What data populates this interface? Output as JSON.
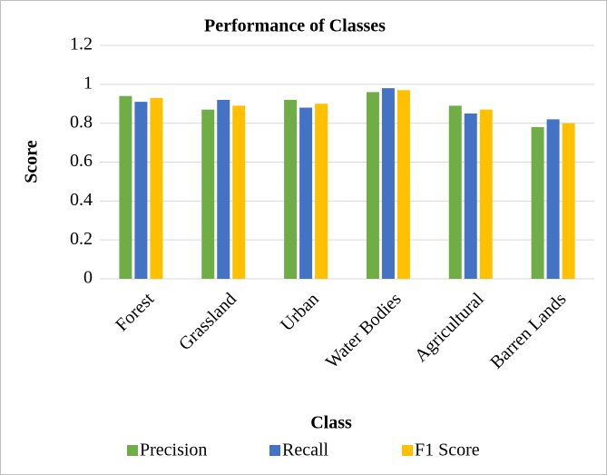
{
  "chart_data": {
    "type": "bar",
    "title": "Performance of Classes",
    "x_label": "Class",
    "y_label": "Score",
    "categories": [
      "Forest",
      "Grassland",
      "Urban",
      "Water Bodies",
      "Agricultural",
      "Barren Lands"
    ],
    "series": [
      {
        "name": "Precision",
        "color": "#70ad47",
        "values": [
          0.94,
          0.87,
          0.92,
          0.96,
          0.89,
          0.78
        ]
      },
      {
        "name": "Recall",
        "color": "#4472c4",
        "values": [
          0.91,
          0.92,
          0.88,
          0.98,
          0.85,
          0.82
        ]
      },
      {
        "name": "F1 Score",
        "color": "#ffc000",
        "values": [
          0.93,
          0.89,
          0.9,
          0.97,
          0.87,
          0.8
        ]
      }
    ],
    "ylim": [
      0,
      1.2
    ],
    "yticks": [
      0,
      0.2,
      0.4,
      0.6,
      0.8,
      1,
      1.2
    ],
    "grid": true,
    "legend": "bottom"
  }
}
